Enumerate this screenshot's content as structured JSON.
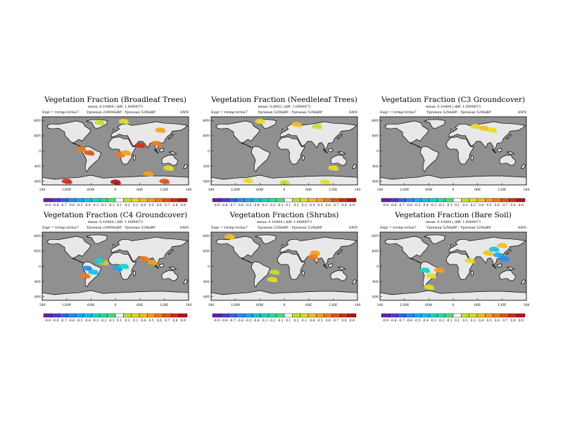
{
  "chart_data": [
    {
      "type": "heatmap",
      "title": "Vegetation Fraction (Broadleaf Trees)",
      "stats": "mean: 0.10484 | diff: 1.0000073",
      "expt": "Expt = tvrmp-tvrlux7",
      "versions": "Ypresian 2390MaBP - Ypresian 52MaBP",
      "season": "ANN",
      "ylabels": [
        "80N",
        "40N",
        "0",
        "40S",
        "80S"
      ],
      "xlabels": [
        "180",
        "120W",
        "60W",
        "0",
        "60E",
        "120E",
        "180"
      ],
      "colorbar": [
        "-0.9",
        "-0.8",
        "-0.7",
        "-0.6",
        "-0.5",
        "-0.4",
        "-0.3",
        "-0.2",
        "-0.1",
        "0.1",
        "0.2",
        "0.3",
        "0.4",
        "0.5",
        "0.6",
        "0.7",
        "0.8",
        "0.9"
      ],
      "patches": [
        {
          "lon": -40,
          "lat": 75,
          "value": 0.2
        },
        {
          "lon": 20,
          "lat": 78,
          "value": 0.3
        },
        {
          "lon": -85,
          "lat": 5,
          "value": 0.6
        },
        {
          "lon": -65,
          "lat": -5,
          "value": 0.7
        },
        {
          "lon": 10,
          "lat": -10,
          "value": 0.6
        },
        {
          "lon": 25,
          "lat": -5,
          "value": 0.5
        },
        {
          "lon": 60,
          "lat": 15,
          "value": 0.8
        },
        {
          "lon": 100,
          "lat": 20,
          "value": 0.6
        },
        {
          "lon": 110,
          "lat": 55,
          "value": 0.5
        },
        {
          "lon": 130,
          "lat": -45,
          "value": 0.3
        },
        {
          "lon": 80,
          "lat": -60,
          "value": 0.5
        },
        {
          "lon": 0,
          "lat": -82,
          "value": 0.9
        },
        {
          "lon": -120,
          "lat": -80,
          "value": 0.8
        },
        {
          "lon": 120,
          "lat": -80,
          "value": 0.7
        }
      ]
    },
    {
      "type": "heatmap",
      "title": "Vegetation Fraction (Needleleaf Trees)",
      "stats": "mean: 0.0602 | diff: 1.0000073",
      "expt": "Expt = tvrmp-tvrlux7",
      "versions": "Ypresian 52MaBP - Ypresian 52MaBP",
      "season": "ANN",
      "ylabels": [
        "80N",
        "40N",
        "0",
        "40S",
        "80S"
      ],
      "xlabels": [
        "180",
        "120W",
        "60W",
        "0",
        "60E",
        "120E",
        "180"
      ],
      "colorbar": [
        "-0.9",
        "-0.8",
        "-0.7",
        "-0.6",
        "-0.5",
        "-0.4",
        "-0.3",
        "-0.2",
        "-0.1",
        "0.1",
        "0.2",
        "0.3",
        "0.4",
        "0.5",
        "0.6",
        "0.7",
        "0.8",
        "0.9"
      ],
      "patches": [
        {
          "lon": -60,
          "lat": 78,
          "value": 0.3
        },
        {
          "lon": 30,
          "lat": 70,
          "value": 0.4
        },
        {
          "lon": 80,
          "lat": 65,
          "value": 0.2
        },
        {
          "lon": 120,
          "lat": -45,
          "value": 0.3
        },
        {
          "lon": -90,
          "lat": -78,
          "value": 0.3
        },
        {
          "lon": 0,
          "lat": -84,
          "value": 0.2
        },
        {
          "lon": 100,
          "lat": -82,
          "value": 0.3
        }
      ]
    },
    {
      "type": "heatmap",
      "title": "Vegetation Fraction (C3 Groundcover)",
      "stats": "mean: 0.10484 | diff: 1.0000073",
      "expt": "Expt = tvrmp-tvrlux7",
      "versions": "Ypresian 52MaBP - Ypresian 52MaBP",
      "season": "ANN",
      "ylabels": [
        "80N",
        "40N",
        "0",
        "40S",
        "80S"
      ],
      "xlabels": [
        "180",
        "120W",
        "60W",
        "0",
        "60E",
        "120E",
        "180"
      ],
      "colorbar": [
        "-0.9",
        "-0.8",
        "-0.7",
        "-0.6",
        "-0.5",
        "-0.4",
        "-0.3",
        "-0.2",
        "-0.1",
        "0.1",
        "0.2",
        "0.3",
        "0.4",
        "0.5",
        "0.6",
        "0.7",
        "0.8",
        "0.9"
      ],
      "patches": [
        {
          "lon": 55,
          "lat": 65,
          "value": 0.3
        },
        {
          "lon": 75,
          "lat": 60,
          "value": 0.4
        },
        {
          "lon": 95,
          "lat": 55,
          "value": 0.3
        }
      ]
    },
    {
      "type": "heatmap",
      "title": "Vegetation Fraction (C4 Groundcover)",
      "stats": "mean: 0.10484 | diff: 1.0000073",
      "expt": "Expt = tvrmp-tvrlux7",
      "versions": "Ypresian 2390MaBP - Ypresian 52MaBP",
      "season": "ANN",
      "ylabels": [
        "80N",
        "40N",
        "0",
        "40S",
        "80S"
      ],
      "xlabels": [
        "180",
        "120W",
        "60W",
        "0",
        "60E",
        "120E",
        "180"
      ],
      "colorbar": [
        "-0.9",
        "-0.8",
        "-0.7",
        "-0.6",
        "-0.5",
        "-0.4",
        "-0.3",
        "-0.2",
        "-0.1",
        "0.1",
        "0.2",
        "0.3",
        "0.4",
        "0.5",
        "0.6",
        "0.7",
        "0.8",
        "0.9"
      ],
      "patches": [
        {
          "lon": -70,
          "lat": -5,
          "value": -0.6
        },
        {
          "lon": -55,
          "lat": -15,
          "value": -0.4
        },
        {
          "lon": -75,
          "lat": -25,
          "value": 0.6
        },
        {
          "lon": 5,
          "lat": -5,
          "value": -0.5
        },
        {
          "lon": 20,
          "lat": 0,
          "value": -0.3
        },
        {
          "lon": 70,
          "lat": 20,
          "value": 0.6
        },
        {
          "lon": 90,
          "lat": 10,
          "value": 0.5
        },
        {
          "lon": -30,
          "lat": 10,
          "value": 0.4
        },
        {
          "lon": -40,
          "lat": 15,
          "value": -0.3
        }
      ]
    },
    {
      "type": "heatmap",
      "title": "Vegetation Fraction (Shrubs)",
      "stats": "mean: 0.10484 | diff: 1.0000073",
      "expt": "Expt = tvrmp-tvrlux7",
      "versions": "Ypresian 52MaBP - Ypresian 52MaBP",
      "season": "ANN",
      "ylabels": [
        "80N",
        "40N",
        "0",
        "40S",
        "80S"
      ],
      "xlabels": [
        "180",
        "120W",
        "60W",
        "0",
        "60E",
        "120E",
        "180"
      ],
      "colorbar": [
        "-0.9",
        "-0.8",
        "-0.7",
        "-0.6",
        "-0.5",
        "-0.4",
        "-0.3",
        "-0.2",
        "-0.1",
        "0.1",
        "0.2",
        "0.3",
        "0.4",
        "0.5",
        "0.6",
        "0.7",
        "0.8",
        "0.9"
      ],
      "patches": [
        {
          "lon": -135,
          "lat": 78,
          "value": 0.4
        },
        {
          "lon": 75,
          "lat": 35,
          "value": 0.5
        },
        {
          "lon": 70,
          "lat": 25,
          "value": 0.6
        },
        {
          "lon": -30,
          "lat": -35,
          "value": 0.3
        },
        {
          "lon": -25,
          "lat": -15,
          "value": 0.2
        }
      ]
    },
    {
      "type": "heatmap",
      "title": "Vegetation Fraction (Bare Soil)",
      "stats": "mean: 0.10484 | diff: 1.0000073",
      "expt": "Expt = tvrmp-tvrlux7",
      "versions": "Ypresian 52MaBP - Ypresian 52MaBP",
      "season": "ANN",
      "ylabels": [
        "80N",
        "40N",
        "0",
        "40S",
        "80S"
      ],
      "xlabels": [
        "180",
        "120W",
        "60W",
        "0",
        "60E",
        "120E",
        "180"
      ],
      "colorbar": [
        "-0.9",
        "-0.8",
        "-0.7",
        "-0.6",
        "-0.5",
        "-0.4",
        "-0.3",
        "-0.2",
        "-0.1",
        "0.1",
        "0.2",
        "0.3",
        "0.4",
        "0.5",
        "0.6",
        "0.7",
        "0.8",
        "0.9"
      ],
      "patches": [
        {
          "lon": 110,
          "lat": 30,
          "value": -0.5
        },
        {
          "lon": 125,
          "lat": 20,
          "value": -0.6
        },
        {
          "lon": 100,
          "lat": 45,
          "value": -0.4
        },
        {
          "lon": 85,
          "lat": 35,
          "value": 0.4
        },
        {
          "lon": 40,
          "lat": 15,
          "value": 0.3
        },
        {
          "lon": -70,
          "lat": -10,
          "value": -0.3
        },
        {
          "lon": -55,
          "lat": -25,
          "value": 0.3
        },
        {
          "lon": -35,
          "lat": -10,
          "value": 0.5
        },
        {
          "lon": 120,
          "lat": 55,
          "value": 0.4
        },
        {
          "lon": -60,
          "lat": -55,
          "value": 0.3
        }
      ]
    }
  ],
  "colors": {
    "ocean": "#909090",
    "land": "#e8e8e8",
    "coast": "#000000",
    "scale": [
      "#6c1ea8",
      "#5a36cc",
      "#3c5cf0",
      "#2a88f4",
      "#1aa8f0",
      "#10c4e6",
      "#14d4c8",
      "#28dca0",
      "#48e07a",
      "#ffffff",
      "#c2e02e",
      "#e6dc28",
      "#f2c024",
      "#f4a020",
      "#ee7a1a",
      "#e2521a",
      "#d22c1a",
      "#b81414"
    ]
  }
}
